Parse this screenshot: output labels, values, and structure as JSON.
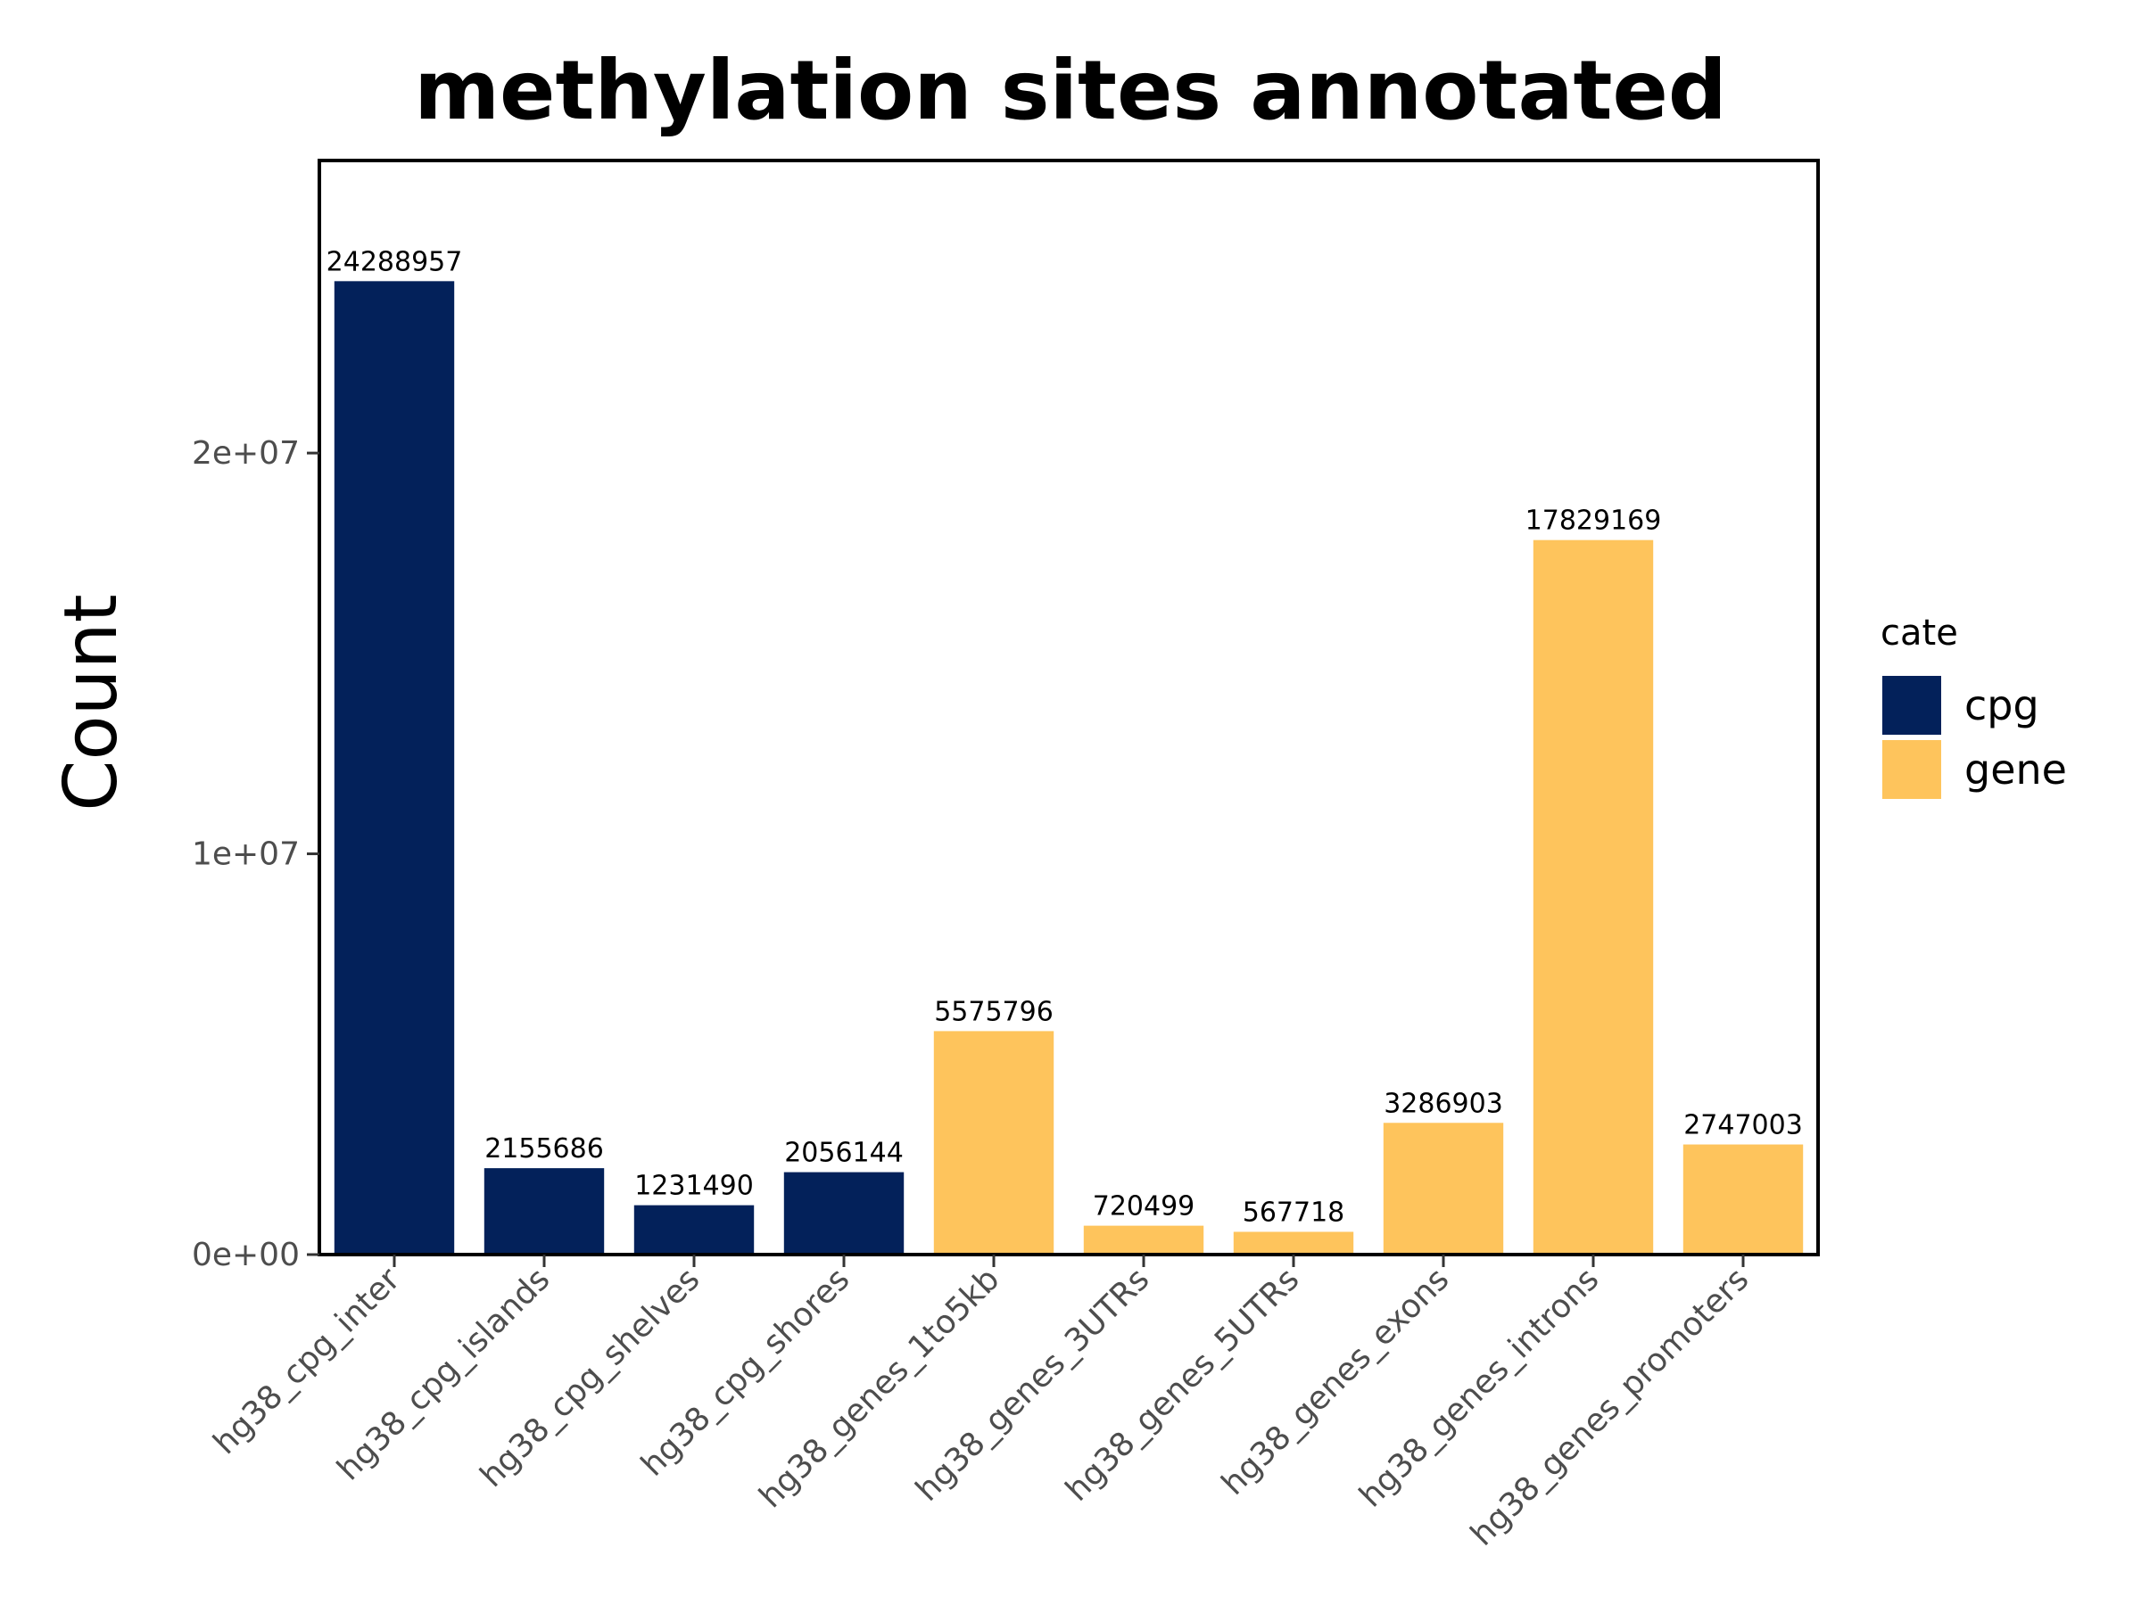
{
  "chart_data": {
    "type": "bar",
    "title": "methylation sites annotated",
    "xlabel": "",
    "ylabel": "Count",
    "ylim": [
      0,
      27300000
    ],
    "yticks": [
      {
        "value": 0,
        "label": "0e+00"
      },
      {
        "value": 10000000,
        "label": "1e+07"
      },
      {
        "value": 20000000,
        "label": "2e+07"
      }
    ],
    "categories": [
      "hg38_cpg_inter",
      "hg38_cpg_islands",
      "hg38_cpg_shelves",
      "hg38_cpg_shores",
      "hg38_genes_1to5kb",
      "hg38_genes_3UTRs",
      "hg38_genes_5UTRs",
      "hg38_genes_exons",
      "hg38_genes_introns",
      "hg38_genes_promoters"
    ],
    "values": [
      24288957,
      2155686,
      1231490,
      2056144,
      5575796,
      720499,
      567718,
      3286903,
      17829169,
      2747003
    ],
    "data_labels": [
      "24288957",
      "2155686",
      "1231490",
      "2056144",
      "5575796",
      "720499",
      "567718",
      "3286903",
      "17829169",
      "2747003"
    ],
    "groups": [
      "cpg",
      "cpg",
      "cpg",
      "cpg",
      "gene",
      "gene",
      "gene",
      "gene",
      "gene",
      "gene"
    ],
    "legend": {
      "title": "cate",
      "position": "right",
      "entries": [
        {
          "name": "cpg",
          "color": "#03215a"
        },
        {
          "name": "gene",
          "color": "#fec45c"
        }
      ]
    },
    "grid": false
  }
}
